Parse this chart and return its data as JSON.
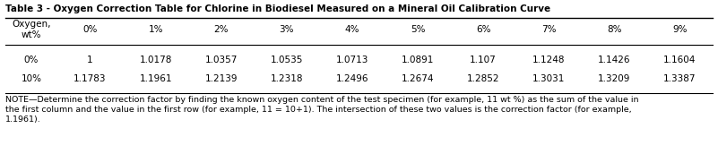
{
  "title": "Table 3 - Oxygen Correction Table for Chlorine in Biodiesel Measured on a Mineral Oil Calibration Curve",
  "col_header_label": "Oxygen,\nwt%",
  "col_headers": [
    "0%",
    "1%",
    "2%",
    "3%",
    "4%",
    "5%",
    "6%",
    "7%",
    "8%",
    "9%"
  ],
  "row_labels": [
    "0%",
    "10%"
  ],
  "data": [
    [
      "1",
      "1.0178",
      "1.0357",
      "1.0535",
      "1.0713",
      "1.0891",
      "1.107",
      "1.1248",
      "1.1426",
      "1.1604"
    ],
    [
      "1.1783",
      "1.1961",
      "1.2139",
      "1.2318",
      "1.2496",
      "1.2674",
      "1.2852",
      "1.3031",
      "1.3209",
      "1.3387"
    ]
  ],
  "note_line1": "NOTE—Determine the correction factor by finding the known oxygen content of the test specimen (for example, 11 wt %) as the sum of the value in",
  "note_line2": "the first column and the value in the first row (for example, 11 = 10+1). The intersection of these two values is the correction factor (for example,",
  "note_line3": "1.1961).",
  "bg_color": "#ffffff",
  "text_color": "#000000",
  "title_fontsize": 7.5,
  "cell_fontsize": 7.5,
  "note_fontsize": 6.8,
  "header_label_fontsize": 7.5
}
